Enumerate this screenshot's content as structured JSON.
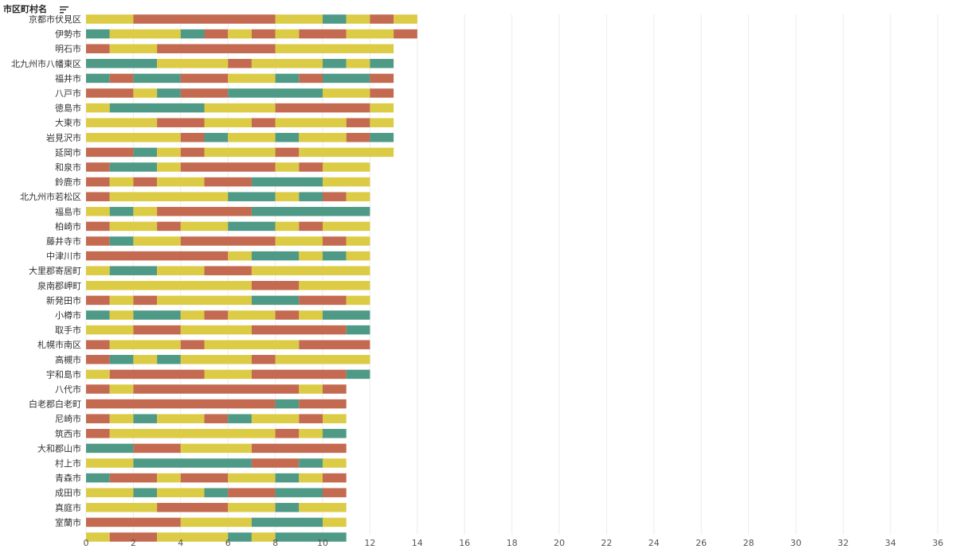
{
  "chart_data": {
    "type": "bar",
    "orientation": "horizontal",
    "stacked": true,
    "row_header": "市区町村名",
    "xlim": [
      0,
      36
    ],
    "x_ticks": [
      0,
      2,
      4,
      6,
      8,
      10,
      12,
      14,
      16,
      18,
      20,
      22,
      24,
      26,
      28,
      30,
      32,
      34,
      36
    ],
    "grid": true,
    "legend": "none",
    "colors": {
      "y": "#dccb45",
      "r": "#c46a50",
      "g": "#4f9a86"
    },
    "rows": [
      {
        "label": "京都市伏見区",
        "segments": [
          [
            "y",
            2
          ],
          [
            "r",
            6
          ],
          [
            "y",
            2
          ],
          [
            "g",
            1
          ],
          [
            "y",
            1
          ],
          [
            "r",
            1
          ],
          [
            "y",
            1
          ]
        ]
      },
      {
        "label": "伊勢市",
        "segments": [
          [
            "g",
            1
          ],
          [
            "y",
            3
          ],
          [
            "g",
            1
          ],
          [
            "r",
            1
          ],
          [
            "y",
            1
          ],
          [
            "r",
            1
          ],
          [
            "y",
            1
          ],
          [
            "r",
            2
          ],
          [
            "y",
            2
          ],
          [
            "r",
            1
          ]
        ]
      },
      {
        "label": "明石市",
        "segments": [
          [
            "r",
            1
          ],
          [
            "y",
            2
          ],
          [
            "r",
            5
          ],
          [
            "y",
            5
          ]
        ]
      },
      {
        "label": "北九州市八幡東区",
        "segments": [
          [
            "g",
            3
          ],
          [
            "y",
            3
          ],
          [
            "r",
            1
          ],
          [
            "y",
            3
          ],
          [
            "g",
            1
          ],
          [
            "y",
            1
          ],
          [
            "g",
            1
          ]
        ]
      },
      {
        "label": "福井市",
        "segments": [
          [
            "g",
            1
          ],
          [
            "r",
            1
          ],
          [
            "g",
            2
          ],
          [
            "r",
            2
          ],
          [
            "y",
            2
          ],
          [
            "g",
            1
          ],
          [
            "r",
            1
          ],
          [
            "g",
            2
          ],
          [
            "r",
            1
          ]
        ]
      },
      {
        "label": "八戸市",
        "segments": [
          [
            "r",
            2
          ],
          [
            "y",
            1
          ],
          [
            "g",
            1
          ],
          [
            "r",
            2
          ],
          [
            "g",
            4
          ],
          [
            "y",
            2
          ],
          [
            "r",
            1
          ]
        ]
      },
      {
        "label": "徳島市",
        "segments": [
          [
            "y",
            1
          ],
          [
            "g",
            4
          ],
          [
            "y",
            3
          ],
          [
            "r",
            4
          ],
          [
            "y",
            1
          ]
        ]
      },
      {
        "label": "大東市",
        "segments": [
          [
            "y",
            3
          ],
          [
            "r",
            2
          ],
          [
            "y",
            2
          ],
          [
            "r",
            1
          ],
          [
            "y",
            3
          ],
          [
            "r",
            1
          ],
          [
            "y",
            1
          ]
        ]
      },
      {
        "label": "岩見沢市",
        "segments": [
          [
            "y",
            4
          ],
          [
            "r",
            1
          ],
          [
            "g",
            1
          ],
          [
            "y",
            2
          ],
          [
            "g",
            1
          ],
          [
            "y",
            2
          ],
          [
            "r",
            1
          ],
          [
            "g",
            1
          ]
        ]
      },
      {
        "label": "延岡市",
        "segments": [
          [
            "r",
            2
          ],
          [
            "g",
            1
          ],
          [
            "y",
            1
          ],
          [
            "r",
            1
          ],
          [
            "y",
            3
          ],
          [
            "r",
            1
          ],
          [
            "y",
            4
          ]
        ]
      },
      {
        "label": "和泉市",
        "segments": [
          [
            "r",
            1
          ],
          [
            "g",
            2
          ],
          [
            "y",
            1
          ],
          [
            "r",
            4
          ],
          [
            "y",
            1
          ],
          [
            "r",
            1
          ],
          [
            "y",
            2
          ]
        ]
      },
      {
        "label": "鈴鹿市",
        "segments": [
          [
            "r",
            1
          ],
          [
            "y",
            1
          ],
          [
            "r",
            1
          ],
          [
            "y",
            2
          ],
          [
            "r",
            2
          ],
          [
            "g",
            3
          ],
          [
            "y",
            2
          ]
        ]
      },
      {
        "label": "北九州市若松区",
        "segments": [
          [
            "r",
            1
          ],
          [
            "y",
            5
          ],
          [
            "g",
            2
          ],
          [
            "y",
            1
          ],
          [
            "g",
            1
          ],
          [
            "r",
            1
          ],
          [
            "y",
            1
          ]
        ]
      },
      {
        "label": "福島市",
        "segments": [
          [
            "y",
            1
          ],
          [
            "g",
            1
          ],
          [
            "y",
            1
          ],
          [
            "r",
            4
          ],
          [
            "g",
            5
          ]
        ]
      },
      {
        "label": "柏崎市",
        "segments": [
          [
            "r",
            1
          ],
          [
            "y",
            2
          ],
          [
            "r",
            1
          ],
          [
            "y",
            2
          ],
          [
            "g",
            2
          ],
          [
            "y",
            1
          ],
          [
            "r",
            1
          ],
          [
            "y",
            2
          ]
        ]
      },
      {
        "label": "藤井寺市",
        "segments": [
          [
            "r",
            1
          ],
          [
            "g",
            1
          ],
          [
            "y",
            2
          ],
          [
            "r",
            4
          ],
          [
            "y",
            2
          ],
          [
            "r",
            1
          ],
          [
            "y",
            1
          ]
        ]
      },
      {
        "label": "中津川市",
        "segments": [
          [
            "r",
            6
          ],
          [
            "y",
            1
          ],
          [
            "g",
            2
          ],
          [
            "y",
            1
          ],
          [
            "g",
            1
          ],
          [
            "y",
            1
          ]
        ]
      },
      {
        "label": "大里郡寄居町",
        "segments": [
          [
            "y",
            1
          ],
          [
            "g",
            2
          ],
          [
            "y",
            2
          ],
          [
            "r",
            2
          ],
          [
            "y",
            5
          ]
        ]
      },
      {
        "label": "泉南郡岬町",
        "segments": [
          [
            "y",
            7
          ],
          [
            "r",
            2
          ],
          [
            "y",
            3
          ]
        ]
      },
      {
        "label": "新発田市",
        "segments": [
          [
            "r",
            1
          ],
          [
            "y",
            1
          ],
          [
            "r",
            1
          ],
          [
            "y",
            4
          ],
          [
            "g",
            2
          ],
          [
            "r",
            2
          ],
          [
            "y",
            1
          ]
        ]
      },
      {
        "label": "小樽市",
        "segments": [
          [
            "g",
            1
          ],
          [
            "y",
            1
          ],
          [
            "g",
            2
          ],
          [
            "y",
            1
          ],
          [
            "r",
            1
          ],
          [
            "y",
            2
          ],
          [
            "r",
            1
          ],
          [
            "y",
            1
          ],
          [
            "g",
            2
          ]
        ]
      },
      {
        "label": "取手市",
        "segments": [
          [
            "y",
            2
          ],
          [
            "r",
            2
          ],
          [
            "y",
            3
          ],
          [
            "r",
            4
          ],
          [
            "g",
            1
          ]
        ]
      },
      {
        "label": "札幌市南区",
        "segments": [
          [
            "r",
            1
          ],
          [
            "y",
            3
          ],
          [
            "r",
            1
          ],
          [
            "y",
            4
          ],
          [
            "r",
            3
          ]
        ]
      },
      {
        "label": "高槻市",
        "segments": [
          [
            "r",
            1
          ],
          [
            "g",
            1
          ],
          [
            "y",
            1
          ],
          [
            "g",
            1
          ],
          [
            "y",
            3
          ],
          [
            "r",
            1
          ],
          [
            "y",
            4
          ]
        ]
      },
      {
        "label": "宇和島市",
        "segments": [
          [
            "y",
            1
          ],
          [
            "r",
            4
          ],
          [
            "y",
            2
          ],
          [
            "r",
            4
          ],
          [
            "g",
            1
          ]
        ]
      },
      {
        "label": "八代市",
        "segments": [
          [
            "r",
            1
          ],
          [
            "y",
            1
          ],
          [
            "r",
            7
          ],
          [
            "y",
            1
          ],
          [
            "r",
            1
          ]
        ]
      },
      {
        "label": "白老郡白老町",
        "segments": [
          [
            "r",
            8
          ],
          [
            "g",
            1
          ],
          [
            "r",
            2
          ]
        ]
      },
      {
        "label": "尼崎市",
        "segments": [
          [
            "r",
            1
          ],
          [
            "y",
            1
          ],
          [
            "g",
            1
          ],
          [
            "y",
            2
          ],
          [
            "r",
            1
          ],
          [
            "g",
            1
          ],
          [
            "y",
            2
          ],
          [
            "r",
            1
          ],
          [
            "y",
            1
          ]
        ]
      },
      {
        "label": "筑西市",
        "segments": [
          [
            "r",
            1
          ],
          [
            "y",
            7
          ],
          [
            "r",
            1
          ],
          [
            "y",
            1
          ],
          [
            "g",
            1
          ]
        ]
      },
      {
        "label": "大和郡山市",
        "segments": [
          [
            "g",
            2
          ],
          [
            "r",
            2
          ],
          [
            "y",
            3
          ],
          [
            "r",
            4
          ]
        ]
      },
      {
        "label": "村上市",
        "segments": [
          [
            "y",
            2
          ],
          [
            "g",
            5
          ],
          [
            "r",
            2
          ],
          [
            "g",
            1
          ],
          [
            "y",
            1
          ]
        ]
      },
      {
        "label": "青森市",
        "segments": [
          [
            "g",
            1
          ],
          [
            "r",
            2
          ],
          [
            "y",
            1
          ],
          [
            "r",
            2
          ],
          [
            "y",
            2
          ],
          [
            "g",
            1
          ],
          [
            "y",
            1
          ],
          [
            "r",
            1
          ]
        ]
      },
      {
        "label": "成田市",
        "segments": [
          [
            "y",
            2
          ],
          [
            "g",
            1
          ],
          [
            "y",
            2
          ],
          [
            "g",
            1
          ],
          [
            "r",
            2
          ],
          [
            "g",
            2
          ],
          [
            "r",
            1
          ]
        ]
      },
      {
        "label": "真庭市",
        "segments": [
          [
            "y",
            3
          ],
          [
            "r",
            3
          ],
          [
            "y",
            2
          ],
          [
            "g",
            1
          ],
          [
            "y",
            2
          ]
        ]
      },
      {
        "label": "室蘭市",
        "segments": [
          [
            "r",
            4
          ],
          [
            "y",
            3
          ],
          [
            "g",
            3
          ],
          [
            "y",
            1
          ]
        ]
      },
      {
        "label": "",
        "segments": [
          [
            "y",
            1
          ],
          [
            "r",
            2
          ],
          [
            "y",
            3
          ],
          [
            "g",
            1
          ],
          [
            "y",
            1
          ],
          [
            "g",
            3
          ]
        ]
      }
    ]
  }
}
